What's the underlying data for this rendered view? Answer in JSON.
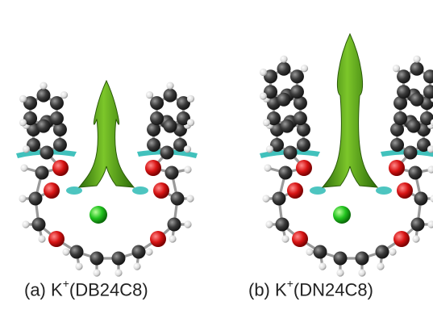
{
  "panels": [
    {
      "id": "a",
      "caption_prefix": "(a) K",
      "caption_sup": "+",
      "caption_suffix": "(DB24C8)",
      "rings": 1
    },
    {
      "id": "b",
      "caption_prefix": "(b) K",
      "caption_sup": "+",
      "caption_suffix": "(DN24C8)",
      "rings": 2
    }
  ],
  "colors": {
    "carbon": "#3a3a3a",
    "oxygen": "#d81414",
    "hydrogen": "#e6e6e6",
    "potassium": "#22c41f",
    "surface_green": "#3f8f10",
    "surface_cyan": "#20b6b0",
    "bond": "#9a9a9a"
  }
}
